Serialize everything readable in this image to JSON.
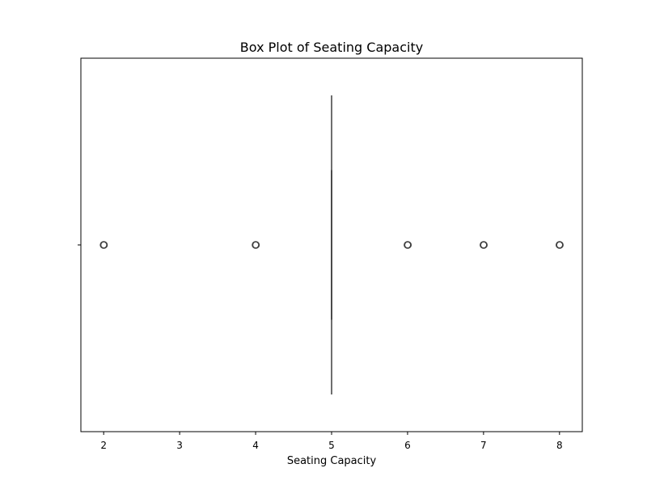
{
  "chart_data": {
    "type": "box",
    "title": "Box Plot of Seating Capacity",
    "xlabel": "Seating Capacity",
    "ylabel": "",
    "xlim": [
      1.7,
      8.3
    ],
    "xticks": [
      2,
      3,
      4,
      5,
      6,
      7,
      8
    ],
    "xtick_labels": [
      "2",
      "3",
      "4",
      "5",
      "6",
      "7",
      "8"
    ],
    "grid": false,
    "box": {
      "q1": 5,
      "median": 5,
      "q3": 5,
      "whisker_low": 5,
      "whisker_high": 5
    },
    "outliers": [
      2,
      4,
      6,
      7,
      8
    ],
    "colors": {
      "axes": "#000000",
      "box": "#3f3f3f",
      "outlier_edge": "#3f3f3f"
    }
  }
}
